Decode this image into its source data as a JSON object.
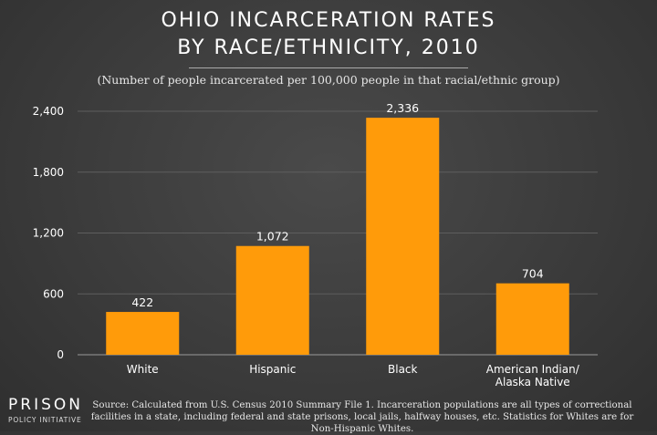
{
  "title_line1": "OHIO INCARCERATION RATES",
  "title_line2": "BY RACE/ETHNICITY, 2010",
  "subtitle": "(Number of people incarcerated per 100,000 people in that racial/ethnic group)",
  "logo_main": "PRISON",
  "logo_sub": "POLICY INITIATIVE",
  "source": "Source: Calculated from U.S. Census 2010 Summary File 1. Incarceration populations are all types of correctional facilities in a state, including federal and state prisons, local jails, halfway houses, etc. Statistics for Whites are for Non-Hispanic Whites.",
  "colors": {
    "bar": "#FF9B0A",
    "grid": "#5e5e5e",
    "axis": "#9a9a9a"
  },
  "chart_data": {
    "type": "bar",
    "title": "OHIO INCARCERATION RATES BY RACE/ETHNICITY, 2010",
    "subtitle": "(Number of people incarcerated per 100,000 people in that racial/ethnic group)",
    "categories": [
      [
        "White"
      ],
      [
        "Hispanic"
      ],
      [
        "Black"
      ],
      [
        "American Indian/",
        "Alaska Native"
      ]
    ],
    "values": [
      422,
      1072,
      2336,
      704
    ],
    "value_labels": [
      "422",
      "1,072",
      "2,336",
      "704"
    ],
    "yticks": [
      0,
      600,
      1200,
      1800,
      2400
    ],
    "ytick_labels": [
      "0",
      "600",
      "1,200",
      "1,800",
      "2,400"
    ],
    "ylim": [
      0,
      2400
    ],
    "grid": true,
    "xlabel": "",
    "ylabel": ""
  }
}
